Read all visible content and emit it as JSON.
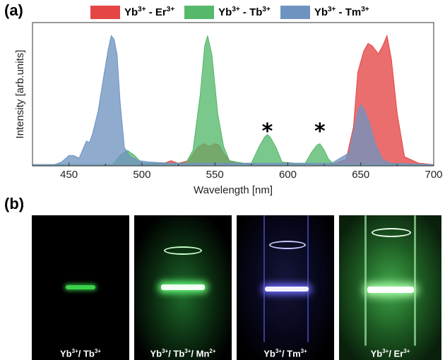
{
  "panel_a_label": "(a)",
  "panel_b_label": "(b)",
  "legend": [
    {
      "base": "Yb",
      "sup1": "3+",
      "mid": " - Er",
      "sup2": "3+",
      "color": "#e64545"
    },
    {
      "base": "Yb",
      "sup1": "3+",
      "mid": " - Tb",
      "sup2": "3+",
      "color": "#55b86a"
    },
    {
      "base": "Yb",
      "sup1": "3+",
      "mid": " - Tm",
      "sup2": "3+",
      "color": "#6f93c0"
    }
  ],
  "chart_data": {
    "type": "area",
    "xlabel": "Wavelength [nm]",
    "ylabel": "Intensity [arb.units]",
    "xlim": [
      425,
      700
    ],
    "ylim": [
      0,
      1.1
    ],
    "xticks": [
      450,
      500,
      550,
      600,
      650,
      700
    ],
    "y_ticks_shown": false,
    "annotations": [
      {
        "text": "*",
        "x": 586
      },
      {
        "text": "*",
        "x": 622
      }
    ],
    "series": [
      {
        "color": "#e64545",
        "x": [
          425,
          500,
          515,
          520,
          525,
          532,
          538,
          542,
          546,
          550,
          553,
          556,
          560,
          565,
          580,
          630,
          640,
          645,
          648,
          652,
          655,
          658,
          662,
          665,
          668,
          671,
          675,
          680,
          690,
          700
        ],
        "y": [
          0.01,
          0.01,
          0.02,
          0.04,
          0.02,
          0.04,
          0.14,
          0.17,
          0.15,
          0.17,
          0.16,
          0.1,
          0.04,
          0.02,
          0.01,
          0.01,
          0.05,
          0.3,
          0.72,
          0.88,
          0.94,
          0.92,
          0.86,
          0.92,
          1.0,
          0.82,
          0.4,
          0.07,
          0.02,
          0.01
        ]
      },
      {
        "color": "#55b86a",
        "x": [
          425,
          480,
          485,
          490,
          495,
          500,
          530,
          535,
          540,
          543,
          545,
          548,
          552,
          556,
          560,
          570,
          575,
          580,
          584,
          586,
          588,
          592,
          596,
          605,
          612,
          616,
          620,
          622,
          625,
          628,
          632,
          700
        ],
        "y": [
          0.01,
          0.01,
          0.08,
          0.12,
          0.08,
          0.02,
          0.02,
          0.12,
          0.55,
          0.92,
          1.0,
          0.85,
          0.4,
          0.15,
          0.04,
          0.02,
          0.02,
          0.14,
          0.22,
          0.24,
          0.22,
          0.14,
          0.03,
          0.02,
          0.02,
          0.1,
          0.16,
          0.17,
          0.12,
          0.05,
          0.01,
          0.01
        ]
      },
      {
        "color": "#6f93c0",
        "x": [
          425,
          440,
          445,
          450,
          453,
          457,
          460,
          462,
          464,
          466,
          470,
          474,
          477,
          479,
          481,
          483,
          485,
          488,
          492,
          498,
          505,
          520,
          545,
          600,
          630,
          642,
          645,
          648,
          650,
          652,
          655,
          660,
          665,
          670,
          700
        ],
        "y": [
          0.01,
          0.01,
          0.03,
          0.08,
          0.08,
          0.06,
          0.14,
          0.19,
          0.18,
          0.24,
          0.42,
          0.7,
          0.9,
          1.0,
          0.97,
          0.85,
          0.5,
          0.14,
          0.07,
          0.04,
          0.03,
          0.02,
          0.02,
          0.02,
          0.02,
          0.1,
          0.26,
          0.42,
          0.47,
          0.44,
          0.36,
          0.17,
          0.05,
          0.02,
          0.01
        ]
      }
    ]
  },
  "photos": [
    {
      "base": "Yb",
      "sup1": "3+",
      "mid": "/ Tb",
      "sup2": "3+",
      "tail": "",
      "sup3": ""
    },
    {
      "base": "Yb",
      "sup1": "3+",
      "mid": "/ Tb",
      "sup2": "3+",
      "tail": "/ Mn",
      "sup3": "2+"
    },
    {
      "base": "Yb",
      "sup1": "3+",
      "mid": "/ Tm",
      "sup2": "3+",
      "tail": "",
      "sup3": ""
    },
    {
      "base": "Yb",
      "sup1": "3+",
      "mid": "/ Er",
      "sup2": "3+",
      "tail": "",
      "sup3": ""
    }
  ]
}
